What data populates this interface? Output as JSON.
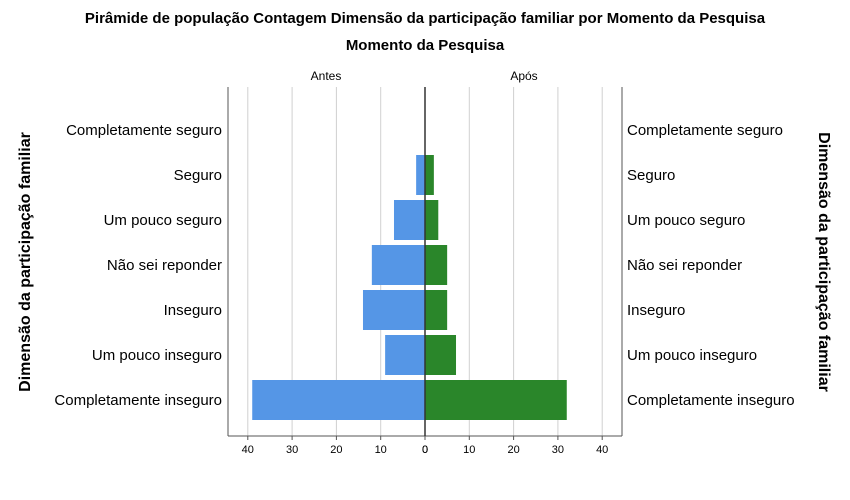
{
  "chart_data": {
    "type": "bar",
    "subtype": "population-pyramid",
    "title": "Pirâmide de população Contagem Dimensão da participação familiar  por Momento da Pesquisa",
    "subtitle": "Momento da Pesquisa",
    "ylabel": "Dimensão da participação familiar",
    "categories": [
      "Completamente seguro",
      "Seguro",
      "Um pouco seguro",
      "Não sei reponder",
      "Inseguro",
      "Um pouco inseguro",
      "Completamente inseguro"
    ],
    "series": [
      {
        "name": "Antes",
        "side": "left",
        "color": "#5596e6",
        "values": [
          0,
          2,
          7,
          12,
          14,
          9,
          39
        ]
      },
      {
        "name": "Após",
        "side": "right",
        "color": "#2a862a",
        "values": [
          0,
          2,
          3,
          5,
          5,
          7,
          32
        ]
      }
    ],
    "xticks_left": [
      40,
      30,
      20,
      10,
      0
    ],
    "xticks_right": [
      0,
      10,
      20,
      30,
      40
    ],
    "xlim": [
      0,
      45
    ],
    "grid": true
  }
}
